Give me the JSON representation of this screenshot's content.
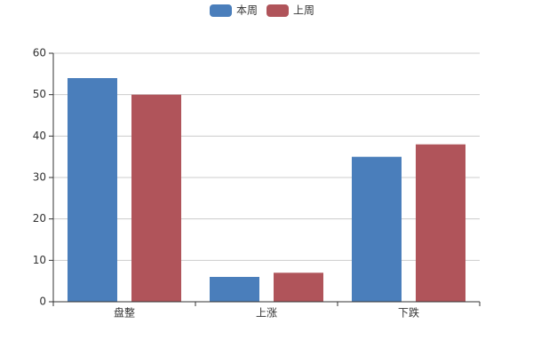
{
  "chart_data": {
    "type": "bar",
    "categories": [
      "盘整",
      "上涨",
      "下跌"
    ],
    "series": [
      {
        "name": "本周",
        "color": "#4a7ebb",
        "values": [
          54,
          6,
          35
        ]
      },
      {
        "name": "上周",
        "color": "#b0545a",
        "values": [
          50,
          7,
          38
        ]
      }
    ],
    "ylim": [
      0,
      60
    ],
    "yticks": [
      0,
      10,
      20,
      30,
      40,
      50,
      60
    ],
    "grid": true,
    "legend": "top"
  }
}
